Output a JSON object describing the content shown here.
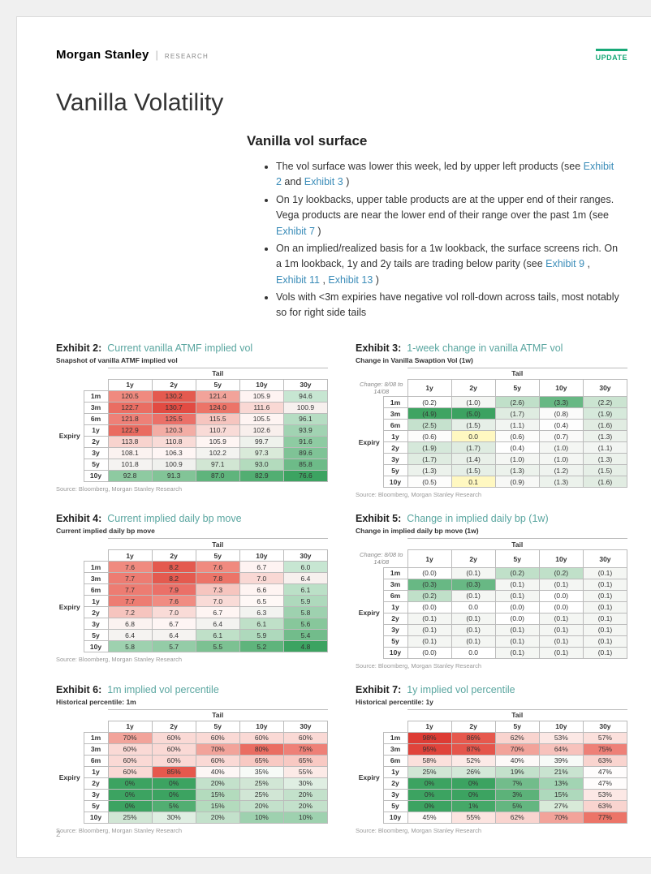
{
  "brand": {
    "name": "Morgan Stanley",
    "sub": "RESEARCH",
    "update": "UPDATE"
  },
  "page_title": "Vanilla Volatility",
  "section_title": "Vanilla vol surface",
  "page_number": "2",
  "bullets": [
    {
      "pre": "The vol surface was lower this week, led by upper left products (see ",
      "links": [
        "Exhibit 2"
      ],
      "mids": [
        " and "
      ],
      "tail_links": [
        "Exhibit 3"
      ],
      "post": " )"
    },
    {
      "pre": "On 1y lookbacks, upper table products are at the upper end of their ranges. Vega products are near the lower end of their range over the past 1m (see ",
      "links": [
        "Exhibit 7"
      ],
      "post": " )"
    },
    {
      "pre": "On an implied/realized basis for a 1w lookback, the surface screens rich. On a 1m lookback, 1y and 2y tails are trading below parity (see ",
      "links": [
        "Exhibit 9",
        "Exhibit 11",
        "Exhibit 13"
      ],
      "sep": " , ",
      "post": " )"
    },
    {
      "pre": "Vols with <3m expiries have negative vol roll-down across tails, most notably so for right side tails"
    }
  ],
  "source_text": "Source: Bloomberg, Morgan Stanley Research",
  "expiry_labels": [
    "1m",
    "3m",
    "6m",
    "1y",
    "2y",
    "3y",
    "5y",
    "10y"
  ],
  "col_labels": [
    "1y",
    "2y",
    "5y",
    "10y",
    "30y"
  ],
  "tail_label": "Tail",
  "expiry_label": "Expiry",
  "exhibits": {
    "e2": {
      "num": "Exhibit 2:",
      "label": "Current vanilla ATMF implied vol",
      "subtitle": "Snapshot of vanilla ATMF implied vol",
      "decimals": 1,
      "parentheses_for_negative": false,
      "percent": false,
      "data": [
        [
          120.5,
          130.2,
          121.4,
          105.9,
          94.6
        ],
        [
          122.7,
          130.7,
          124.0,
          111.6,
          100.9
        ],
        [
          121.8,
          125.5,
          115.5,
          105.5,
          96.1
        ],
        [
          122.9,
          120.3,
          110.7,
          102.6,
          93.9
        ],
        [
          113.8,
          110.8,
          105.9,
          99.7,
          91.6
        ],
        [
          108.1,
          106.3,
          102.2,
          97.3,
          89.6
        ],
        [
          101.8,
          100.9,
          97.1,
          93.0,
          85.8
        ],
        [
          92.8,
          91.3,
          87.0,
          82.9,
          76.6
        ]
      ],
      "colors": [
        [
          "#f08a7f",
          "#e45a4f",
          "#f2a39a",
          "#fef3f2",
          "#c7e6d2"
        ],
        [
          "#ea6d62",
          "#e24b42",
          "#ec7468",
          "#f9d8d4",
          "#f7f0ee"
        ],
        [
          "#ee8077",
          "#eb7068",
          "#f6c5bf",
          "#fef4f2",
          "#b6ddc3"
        ],
        [
          "#ea6b60",
          "#f3ada5",
          "#f9dbd7",
          "#f8efec",
          "#a1d3b2"
        ],
        [
          "#f8d3ce",
          "#f9dbd7",
          "#fef5f3",
          "#eef2ec",
          "#8ecba2"
        ],
        [
          "#fbf2f0",
          "#fef5f4",
          "#f3f3f0",
          "#d9ead9",
          "#7fc396"
        ],
        [
          "#f5f3f1",
          "#f0f1ee",
          "#d1e6d3",
          "#b3dbbd",
          "#6dbb88"
        ],
        [
          "#8ecaa1",
          "#82c497",
          "#5fb47c",
          "#52ae72",
          "#3ca361"
        ]
      ]
    },
    "e3": {
      "num": "Exhibit 3:",
      "label": "1-week change in vanilla ATMF vol",
      "subtitle": "Change in Vanilla Swaption Vol (1w)",
      "change_range": "Change: 8/08 to 14/08",
      "decimals": 1,
      "parentheses_for_negative": true,
      "percent": false,
      "data": [
        [
          -0.2,
          -1.0,
          -2.6,
          -3.3,
          -2.2
        ],
        [
          -4.9,
          -5.0,
          -1.7,
          -0.8,
          -1.9
        ],
        [
          -2.5,
          -1.5,
          -1.1,
          -0.4,
          -1.6
        ],
        [
          -0.6,
          0.0,
          -0.6,
          -0.7,
          -1.3
        ],
        [
          -1.9,
          -1.7,
          -0.4,
          -1.0,
          -1.1
        ],
        [
          -1.7,
          -1.4,
          -1.0,
          -1.0,
          -1.3
        ],
        [
          -1.3,
          -1.5,
          -1.3,
          -1.2,
          -1.5
        ],
        [
          -0.5,
          0.1,
          -0.9,
          -1.3,
          -1.6
        ]
      ],
      "colors": [
        [
          "#ffffff",
          "#f4f6f3",
          "#c0e0c9",
          "#68b884",
          "#cbe4d1"
        ],
        [
          "#3fa462",
          "#3ca261",
          "#dfece1",
          "#fbfbfa",
          "#d6e9db"
        ],
        [
          "#c5e1cd",
          "#e6efe7",
          "#f2f5f2",
          "#fefefe",
          "#e1ece2"
        ],
        [
          "#fcfcfb",
          "#fff8c1",
          "#fcfcfb",
          "#fafaf9",
          "#ecf2ec"
        ],
        [
          "#d5e8da",
          "#dfece1",
          "#fefefe",
          "#f4f6f3",
          "#f2f5f2"
        ],
        [
          "#dfece1",
          "#e9f0e9",
          "#f4f6f3",
          "#f4f6f3",
          "#ecf2ec"
        ],
        [
          "#ecf2ec",
          "#e6efe7",
          "#ecf2ec",
          "#eff3ef",
          "#e6efe7"
        ],
        [
          "#fdfdfc",
          "#fff8c1",
          "#f7f8f6",
          "#ecf2ec",
          "#e1ece2"
        ]
      ]
    },
    "e4": {
      "num": "Exhibit 4:",
      "label": "Current implied daily bp move",
      "subtitle": "Current implied daily bp move",
      "decimals": 1,
      "parentheses_for_negative": false,
      "percent": false,
      "data": [
        [
          7.6,
          8.2,
          7.6,
          6.7,
          6.0
        ],
        [
          7.7,
          8.2,
          7.8,
          7.0,
          6.4
        ],
        [
          7.7,
          7.9,
          7.3,
          6.6,
          6.1
        ],
        [
          7.7,
          7.6,
          7.0,
          6.5,
          5.9
        ],
        [
          7.2,
          7.0,
          6.7,
          6.3,
          5.8
        ],
        [
          6.8,
          6.7,
          6.4,
          6.1,
          5.6
        ],
        [
          6.4,
          6.4,
          6.1,
          5.9,
          5.4
        ],
        [
          5.8,
          5.7,
          5.5,
          5.2,
          4.8
        ]
      ],
      "colors": [
        [
          "#f08a7f",
          "#e45a4f",
          "#f08a7f",
          "#fef3f2",
          "#c7e6d2"
        ],
        [
          "#ed7c72",
          "#e45a4f",
          "#ec7468",
          "#f9d8d4",
          "#f7f0ee"
        ],
        [
          "#ed7c72",
          "#eb7068",
          "#f6c5bf",
          "#fef4f2",
          "#bbe0c7"
        ],
        [
          "#ed7c72",
          "#f08c82",
          "#f9dbd7",
          "#fef8f6",
          "#aed9bc"
        ],
        [
          "#f6c4be",
          "#f9dbd7",
          "#fef5f3",
          "#f2f3f0",
          "#9ed1af"
        ],
        [
          "#fbf2f0",
          "#fef5f4",
          "#f3f3f0",
          "#bfe0c8",
          "#87c79b"
        ],
        [
          "#f5f3f1",
          "#f5f3f1",
          "#bfe0c8",
          "#aed9bc",
          "#72bc8b"
        ],
        [
          "#9ed1af",
          "#94ccA7",
          "#7cc192",
          "#5fb47c",
          "#3ca361"
        ]
      ]
    },
    "e5": {
      "num": "Exhibit 5:",
      "label": "Change in implied daily bp (1w)",
      "subtitle": "Change in implied daily bp move (1w)",
      "change_range": "Change: 8/08 to 14/08",
      "decimals": 1,
      "parentheses_for_negative": true,
      "percent": false,
      "data": [
        [
          -0.0,
          -0.1,
          -0.2,
          -0.2,
          -0.1
        ],
        [
          -0.3,
          -0.3,
          -0.1,
          -0.1,
          -0.1
        ],
        [
          -0.2,
          -0.1,
          -0.1,
          -0.0,
          -0.1
        ],
        [
          -0.0,
          0.0,
          -0.0,
          -0.0,
          -0.1
        ],
        [
          -0.1,
          -0.1,
          -0.0,
          -0.1,
          -0.1
        ],
        [
          -0.1,
          -0.1,
          -0.1,
          -0.1,
          -0.1
        ],
        [
          -0.1,
          -0.1,
          -0.1,
          -0.1,
          -0.1
        ],
        [
          -0.0,
          0.0,
          -0.1,
          -0.1,
          -0.1
        ]
      ],
      "colors": [
        [
          "#ffffff",
          "#f4f6f3",
          "#c0e0c9",
          "#c0e0c9",
          "#f4f6f3"
        ],
        [
          "#68b884",
          "#68b884",
          "#f4f6f3",
          "#f4f6f3",
          "#f4f6f3"
        ],
        [
          "#c0e0c9",
          "#f4f6f3",
          "#f4f6f3",
          "#ffffff",
          "#f4f6f3"
        ],
        [
          "#ffffff",
          "#ffffff",
          "#ffffff",
          "#ffffff",
          "#f4f6f3"
        ],
        [
          "#f4f6f3",
          "#f4f6f3",
          "#ffffff",
          "#f4f6f3",
          "#f4f6f3"
        ],
        [
          "#f4f6f3",
          "#f4f6f3",
          "#f4f6f3",
          "#f4f6f3",
          "#f4f6f3"
        ],
        [
          "#f4f6f3",
          "#f4f6f3",
          "#f4f6f3",
          "#f4f6f3",
          "#f4f6f3"
        ],
        [
          "#ffffff",
          "#ffffff",
          "#f4f6f3",
          "#f4f6f3",
          "#f4f6f3"
        ]
      ]
    },
    "e6": {
      "num": "Exhibit 6:",
      "label": "1m implied vol percentile",
      "subtitle": "Historical percentile: 1m",
      "decimals": 0,
      "parentheses_for_negative": false,
      "percent": true,
      "data": [
        [
          70,
          60,
          60,
          60,
          60
        ],
        [
          60,
          60,
          70,
          80,
          75
        ],
        [
          60,
          60,
          60,
          65,
          65
        ],
        [
          60,
          85,
          40,
          35,
          55
        ],
        [
          0,
          0,
          20,
          25,
          30
        ],
        [
          0,
          0,
          15,
          25,
          20
        ],
        [
          0,
          5,
          15,
          20,
          20
        ],
        [
          25,
          30,
          20,
          10,
          10
        ]
      ],
      "colors": [
        [
          "#f2a39a",
          "#fad9d5",
          "#fad9d5",
          "#fad9d5",
          "#fad9d5"
        ],
        [
          "#fad9d5",
          "#fad9d5",
          "#f2a39a",
          "#ea6d62",
          "#ee8077"
        ],
        [
          "#fad9d5",
          "#fad9d5",
          "#fad9d5",
          "#f8c9c3",
          "#f8c9c3"
        ],
        [
          "#fad9d5",
          "#e6584d",
          "#fdf6f5",
          "#f7faf7",
          "#fceae7"
        ],
        [
          "#3ca361",
          "#3ca361",
          "#c3e1cb",
          "#d1e6d5",
          "#dfeee2"
        ],
        [
          "#3ca361",
          "#3ca361",
          "#b3dbbd",
          "#d1e6d5",
          "#c3e1cb"
        ],
        [
          "#3ca361",
          "#52ae72",
          "#b3dbbd",
          "#c3e1cb",
          "#c3e1cb"
        ],
        [
          "#d1e6d5",
          "#dfeee2",
          "#c3e1cb",
          "#9ed1af",
          "#9ed1af"
        ]
      ]
    },
    "e7": {
      "num": "Exhibit 7:",
      "label": "1y implied vol percentile",
      "subtitle": "Historical percentile: 1y",
      "decimals": 0,
      "parentheses_for_negative": false,
      "percent": true,
      "data": [
        [
          98,
          86,
          62,
          53,
          57
        ],
        [
          95,
          87,
          70,
          64,
          75
        ],
        [
          58,
          52,
          40,
          39,
          63
        ],
        [
          25,
          26,
          19,
          21,
          47
        ],
        [
          0,
          0,
          7,
          13,
          47
        ],
        [
          0,
          0,
          3,
          15,
          53
        ],
        [
          0,
          1,
          5,
          27,
          63
        ],
        [
          45,
          55,
          62,
          70,
          77
        ]
      ],
      "colors": [
        [
          "#dd3b34",
          "#e6584d",
          "#f9d4cf",
          "#fce8e5",
          "#fbe0dc"
        ],
        [
          "#e0433b",
          "#e5554b",
          "#f2a39a",
          "#f7c2bc",
          "#ee8077"
        ],
        [
          "#fbe0dc",
          "#fceae7",
          "#fdf9f8",
          "#f7faf7",
          "#f9d4cf"
        ],
        [
          "#d1e6d5",
          "#d4e8d8",
          "#c3e1cb",
          "#c9e3d0",
          "#fefcfc"
        ],
        [
          "#3ca361",
          "#3ca361",
          "#72bc8b",
          "#a2d4b3",
          "#fefcfc"
        ],
        [
          "#3ca361",
          "#3ca361",
          "#5cb279",
          "#aed9bc",
          "#fce8e5"
        ],
        [
          "#3ca361",
          "#45a868",
          "#64b680",
          "#d8ead8",
          "#f9d4cf"
        ],
        [
          "#fefaf9",
          "#fce4e0",
          "#f9d4cf",
          "#f2a39a",
          "#ec7468"
        ]
      ]
    }
  }
}
